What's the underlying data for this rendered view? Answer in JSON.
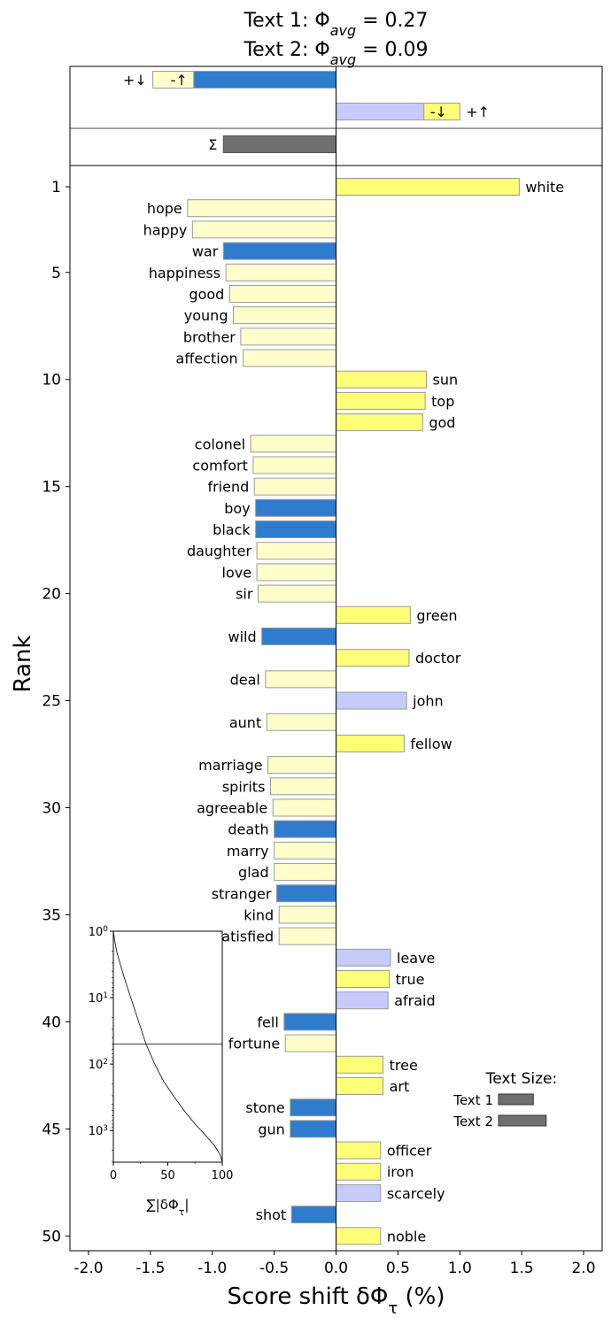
{
  "chart_data": {
    "type": "bar",
    "title_lines": [
      "Text 1: Φ",
      "avg",
      " = 0.27",
      "Text 2: Φ",
      "avg",
      " = 0.09"
    ],
    "xlabel_main": "Score shift δΦ",
    "xlabel_sub": "τ",
    "xlabel_unit": " (%)",
    "ylabel": "Rank",
    "xlim": [
      -2.15,
      2.15
    ],
    "xticks": [
      {
        "v": -2.0,
        "label": "-2.0"
      },
      {
        "v": -1.5,
        "label": "-1.5"
      },
      {
        "v": -1.0,
        "label": "-1.0"
      },
      {
        "v": -0.5,
        "label": "-0.5"
      },
      {
        "v": 0.0,
        "label": "0.0"
      },
      {
        "v": 0.5,
        "label": "0.5"
      },
      {
        "v": 1.0,
        "label": "1.0"
      },
      {
        "v": 1.5,
        "label": "1.5"
      },
      {
        "v": 2.0,
        "label": "2.0"
      }
    ],
    "yticks": [
      "1",
      "5",
      "10",
      "15",
      "20",
      "25",
      "30",
      "35",
      "40",
      "45",
      "50"
    ],
    "colors": {
      "pos_up": "#ffff77",
      "pos_down": "#ffffcc",
      "neg_up": "#2f7cce",
      "neg_down": "#c6cbfb",
      "sum": "#707070",
      "edge": "#9a9a9a"
    },
    "summary": [
      {
        "label": "+↓",
        "value": -1.48,
        "kind": "pos_down"
      },
      {
        "label": "+↑",
        "value": 1.0,
        "kind": "pos_up"
      },
      {
        "label": "-↑",
        "value": -1.15,
        "kind": "neg_up"
      },
      {
        "label": "-↓",
        "value": 0.71,
        "kind": "neg_down"
      },
      {
        "label": "Σ",
        "value": -0.91,
        "kind": "sum"
      }
    ],
    "words": [
      {
        "rank": 1,
        "word": "white",
        "value": 1.48,
        "kind": "pos_up"
      },
      {
        "rank": 2,
        "word": "hope",
        "value": -1.2,
        "kind": "pos_down"
      },
      {
        "rank": 3,
        "word": "happy",
        "value": -1.16,
        "kind": "pos_down"
      },
      {
        "rank": 4,
        "word": "war",
        "value": -0.91,
        "kind": "neg_up"
      },
      {
        "rank": 5,
        "word": "happiness",
        "value": -0.89,
        "kind": "pos_down"
      },
      {
        "rank": 6,
        "word": "good",
        "value": -0.86,
        "kind": "pos_down"
      },
      {
        "rank": 7,
        "word": "young",
        "value": -0.83,
        "kind": "pos_down"
      },
      {
        "rank": 8,
        "word": "brother",
        "value": -0.77,
        "kind": "pos_down"
      },
      {
        "rank": 9,
        "word": "affection",
        "value": -0.75,
        "kind": "pos_down"
      },
      {
        "rank": 10,
        "word": "sun",
        "value": 0.73,
        "kind": "pos_up"
      },
      {
        "rank": 11,
        "word": "top",
        "value": 0.72,
        "kind": "pos_up"
      },
      {
        "rank": 12,
        "word": "god",
        "value": 0.7,
        "kind": "pos_up"
      },
      {
        "rank": 13,
        "word": "colonel",
        "value": -0.69,
        "kind": "pos_down"
      },
      {
        "rank": 14,
        "word": "comfort",
        "value": -0.67,
        "kind": "pos_down"
      },
      {
        "rank": 15,
        "word": "friend",
        "value": -0.66,
        "kind": "pos_down"
      },
      {
        "rank": 16,
        "word": "boy",
        "value": -0.65,
        "kind": "neg_up"
      },
      {
        "rank": 17,
        "word": "black",
        "value": -0.65,
        "kind": "neg_up"
      },
      {
        "rank": 18,
        "word": "daughter",
        "value": -0.64,
        "kind": "pos_down"
      },
      {
        "rank": 19,
        "word": "love",
        "value": -0.64,
        "kind": "pos_down"
      },
      {
        "rank": 20,
        "word": "sir",
        "value": -0.63,
        "kind": "pos_down"
      },
      {
        "rank": 21,
        "word": "green",
        "value": 0.6,
        "kind": "pos_up"
      },
      {
        "rank": 22,
        "word": "wild",
        "value": -0.6,
        "kind": "neg_up"
      },
      {
        "rank": 23,
        "word": "doctor",
        "value": 0.59,
        "kind": "pos_up"
      },
      {
        "rank": 24,
        "word": "deal",
        "value": -0.57,
        "kind": "pos_down"
      },
      {
        "rank": 25,
        "word": "john",
        "value": 0.57,
        "kind": "neg_down"
      },
      {
        "rank": 26,
        "word": "aunt",
        "value": -0.56,
        "kind": "pos_down"
      },
      {
        "rank": 27,
        "word": "fellow",
        "value": 0.55,
        "kind": "pos_up"
      },
      {
        "rank": 28,
        "word": "marriage",
        "value": -0.55,
        "kind": "pos_down"
      },
      {
        "rank": 29,
        "word": "spirits",
        "value": -0.53,
        "kind": "pos_down"
      },
      {
        "rank": 30,
        "word": "agreeable",
        "value": -0.51,
        "kind": "pos_down"
      },
      {
        "rank": 31,
        "word": "death",
        "value": -0.5,
        "kind": "neg_up"
      },
      {
        "rank": 32,
        "word": "marry",
        "value": -0.5,
        "kind": "pos_down"
      },
      {
        "rank": 33,
        "word": "glad",
        "value": -0.5,
        "kind": "pos_down"
      },
      {
        "rank": 34,
        "word": "stranger",
        "value": -0.48,
        "kind": "neg_up"
      },
      {
        "rank": 35,
        "word": "kind",
        "value": -0.46,
        "kind": "pos_down"
      },
      {
        "rank": 36,
        "word": "satisfied",
        "value": -0.46,
        "kind": "pos_down"
      },
      {
        "rank": 37,
        "word": "leave",
        "value": 0.44,
        "kind": "neg_down"
      },
      {
        "rank": 38,
        "word": "true",
        "value": 0.43,
        "kind": "pos_up"
      },
      {
        "rank": 39,
        "word": "afraid",
        "value": 0.42,
        "kind": "neg_down"
      },
      {
        "rank": 40,
        "word": "fell",
        "value": -0.42,
        "kind": "neg_up"
      },
      {
        "rank": 41,
        "word": "fortune",
        "value": -0.41,
        "kind": "pos_down"
      },
      {
        "rank": 42,
        "word": "tree",
        "value": 0.38,
        "kind": "pos_up"
      },
      {
        "rank": 43,
        "word": "art",
        "value": 0.38,
        "kind": "pos_up"
      },
      {
        "rank": 44,
        "word": "stone",
        "value": -0.37,
        "kind": "neg_up"
      },
      {
        "rank": 45,
        "word": "gun",
        "value": -0.37,
        "kind": "neg_up"
      },
      {
        "rank": 46,
        "word": "officer",
        "value": 0.36,
        "kind": "pos_up"
      },
      {
        "rank": 47,
        "word": "iron",
        "value": 0.36,
        "kind": "pos_up"
      },
      {
        "rank": 48,
        "word": "scarcely",
        "value": 0.36,
        "kind": "neg_down"
      },
      {
        "rank": 49,
        "word": "shot",
        "value": -0.36,
        "kind": "neg_up"
      },
      {
        "rank": 50,
        "word": "noble",
        "value": 0.36,
        "kind": "pos_up"
      }
    ],
    "inset": {
      "xlabel": "∑|δΦ",
      "xlabel_sub": "τ",
      "xlabel_end": "|",
      "xticks": [
        {
          "v": 0,
          "label": "0"
        },
        {
          "v": 50,
          "label": "50"
        },
        {
          "v": 100,
          "label": "100"
        }
      ],
      "xlim": [
        0,
        100
      ],
      "ylim_log": [
        1,
        3000
      ],
      "yticks": [
        {
          "v": 1,
          "base": "10",
          "exp": "0"
        },
        {
          "v": 10,
          "base": "10",
          "exp": "1"
        },
        {
          "v": 100,
          "base": "10",
          "exp": "2"
        },
        {
          "v": 1000,
          "base": "10",
          "exp": "3"
        }
      ],
      "hline_rank": 50,
      "curve": [
        [
          0,
          1
        ],
        [
          1,
          1.3
        ],
        [
          3,
          2
        ],
        [
          6,
          3
        ],
        [
          10,
          5
        ],
        [
          16,
          10
        ],
        [
          22,
          20
        ],
        [
          30,
          50
        ],
        [
          38,
          100
        ],
        [
          46,
          180
        ],
        [
          55,
          300
        ],
        [
          65,
          500
        ],
        [
          75,
          800
        ],
        [
          85,
          1200
        ],
        [
          93,
          1700
        ],
        [
          98,
          2300
        ],
        [
          100,
          3000
        ]
      ]
    },
    "legend": {
      "title": "Text Size:",
      "items": [
        {
          "label": "Text 1",
          "size": 0.54
        },
        {
          "label": "Text 2",
          "size": 0.74
        }
      ]
    }
  }
}
